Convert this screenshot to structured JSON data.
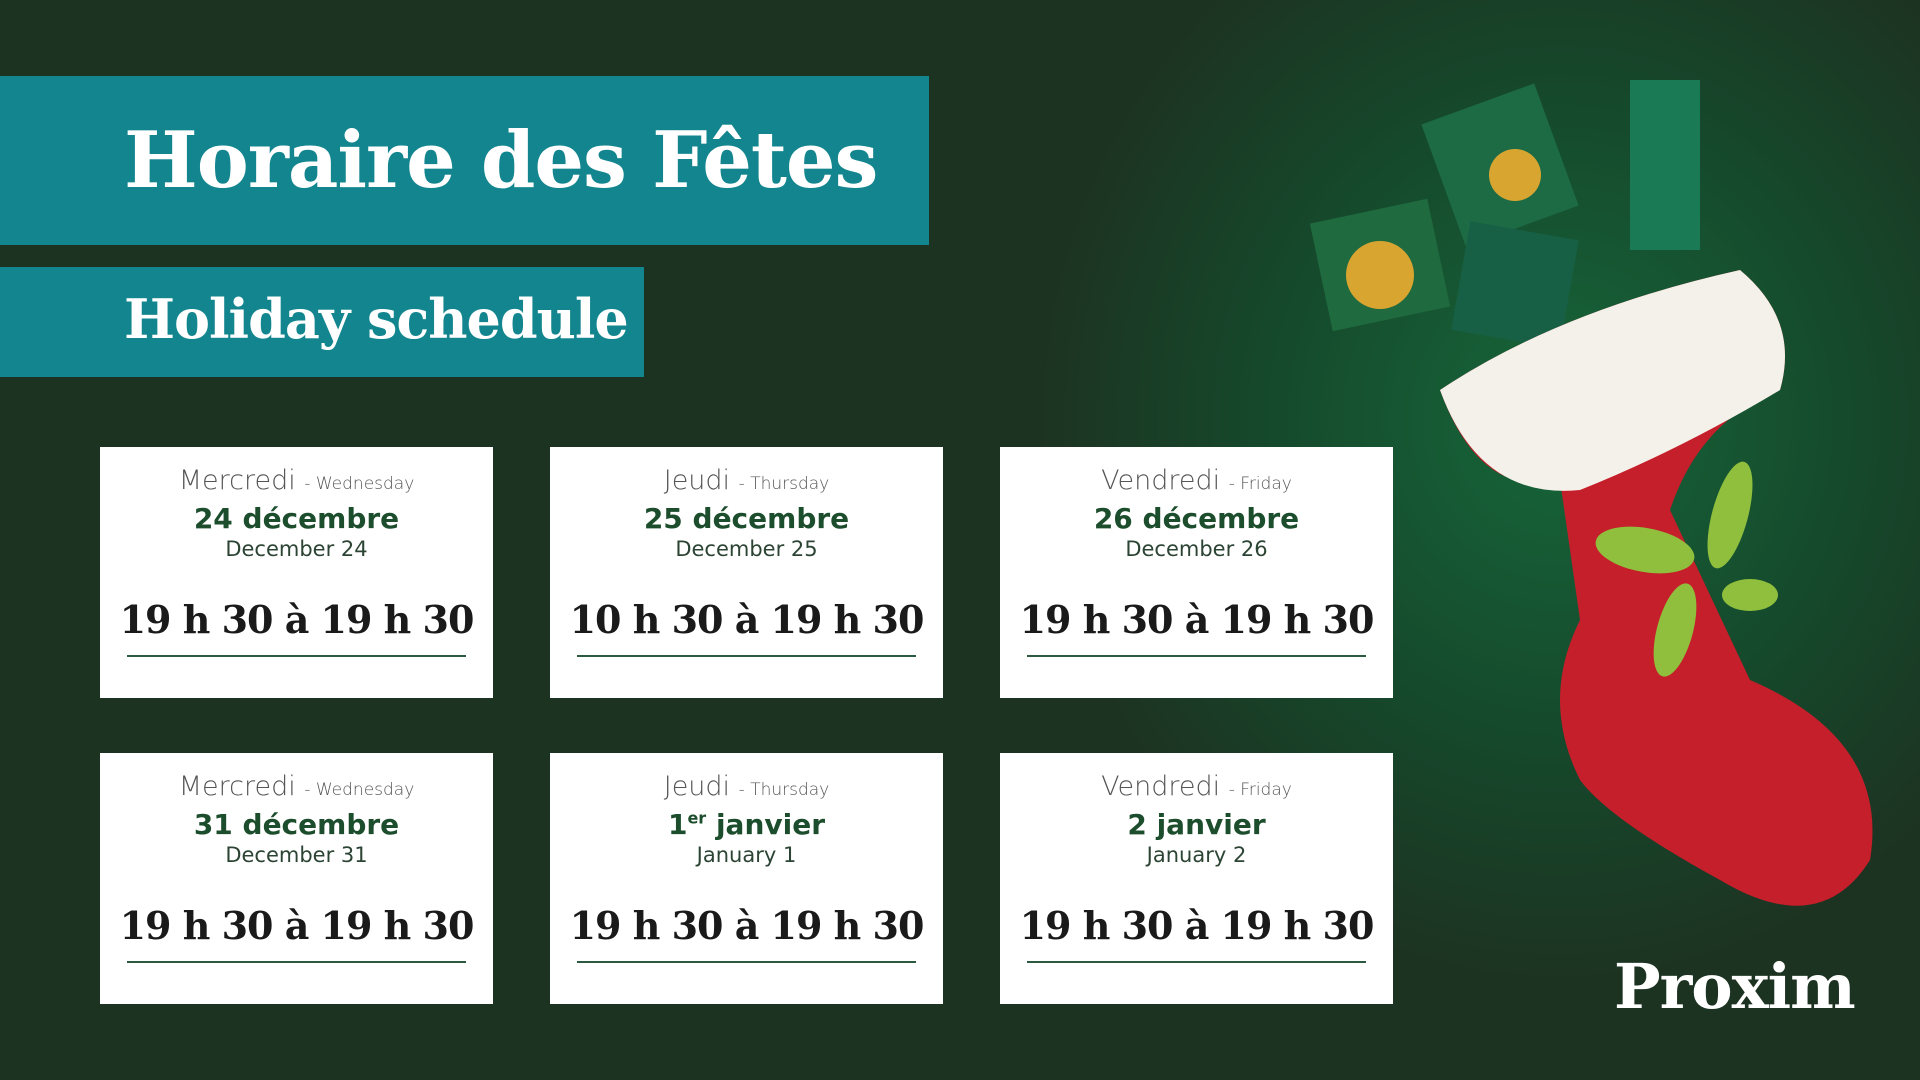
{
  "header": {
    "title": "Horaire des Fêtes",
    "subtitle": "Holiday schedule"
  },
  "cards": [
    {
      "day": "Mercredi",
      "day_en": "- Wednesday",
      "date": "24 décembre",
      "date_en": "December 24",
      "hours": "19 h 30 à 19 h 30"
    },
    {
      "day": "Jeudi",
      "day_en": "- Thursday",
      "date": "25 décembre",
      "date_en": "December 25",
      "hours": "10 h 30 à 19 h 30"
    },
    {
      "day": "Vendredi",
      "day_en": "- Friday",
      "date": "26 décembre",
      "date_en": "December 26",
      "hours": "19 h 30 à 19 h 30"
    },
    {
      "day": "Mercredi",
      "day_en": "- Wednesday",
      "date": "31 décembre",
      "date_en": "December 31",
      "hours": "19 h 30 à 19 h 30"
    },
    {
      "day": "Jeudi",
      "day_en": "- Thursday",
      "date": "1",
      "date_sup": "er",
      "date_rest": "janvier",
      "date_en": "January 1",
      "hours": "19 h 30 à 19 h 30"
    },
    {
      "day": "Vendredi",
      "day_en": "- Friday",
      "date": "2 janvier",
      "date_en": "January 2",
      "hours": "19 h 30 à 19 h 30"
    }
  ],
  "logo": "Proxim"
}
